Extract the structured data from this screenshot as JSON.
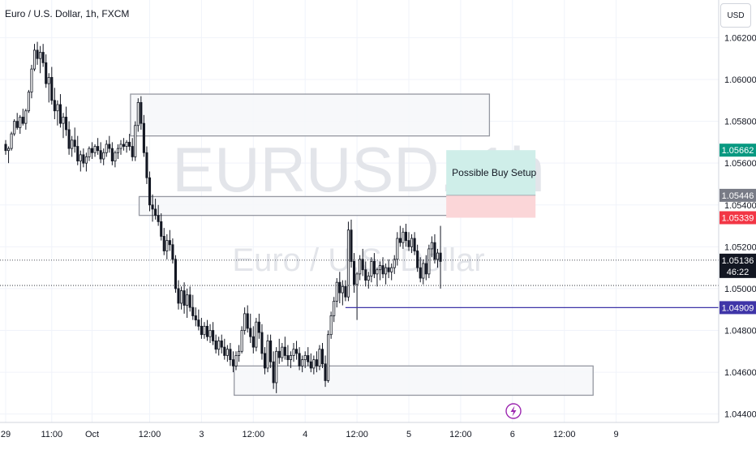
{
  "header": {
    "title": "Euro / U.S. Dollar, 1h, FXCM"
  },
  "currency_button": "USD",
  "watermark": {
    "symbol": "EURUSD, 1h",
    "name": "Euro / U.S. Dollar"
  },
  "annotation": {
    "label": "Possible Buy Setup"
  },
  "lightning_icon": "lightning-icon",
  "colors": {
    "bull": "#ffffff",
    "bear": "#131722",
    "zone_border": "#9598a1",
    "tp_fill": "#cfeee9",
    "sl_fill": "#fbd6d8",
    "level_line": "#3f35a8",
    "tp_label": "#089981",
    "sl_label": "#f23645",
    "entry_label": "#787b86",
    "last_price": "#131722"
  },
  "chart_data": {
    "type": "candlestick",
    "title": "Euro / U.S. Dollar, 1h, FXCM",
    "ylim": [
      1.0436,
      1.0638
    ],
    "y_ticks": [
      "1.06200",
      "1.06000",
      "1.05800",
      "1.05600",
      "1.05400",
      "1.05200",
      "1.05000",
      "1.04800",
      "1.04600",
      "1.04400"
    ],
    "x_ticks": [
      "29",
      "11:00",
      "Oct",
      "12:00",
      "3",
      "12:00",
      "4",
      "12:00",
      "5",
      "12:00",
      "6",
      "12:00",
      "9"
    ],
    "x_tick_bars": [
      0,
      16,
      30,
      50,
      68,
      86,
      104,
      122,
      140,
      158,
      176,
      194,
      212
    ],
    "zones": [
      {
        "name": "supply-zone-upper",
        "bar_start": 44,
        "bar_end": 168,
        "price_top": 1.0593,
        "price_bottom": 1.0573
      },
      {
        "name": "supply-zone-mid",
        "bar_start": 47,
        "bar_end": 174,
        "price_top": 1.0544,
        "price_bottom": 1.0535
      },
      {
        "name": "demand-zone",
        "bar_start": 80,
        "bar_end": 204,
        "price_top": 1.0463,
        "price_bottom": 1.0449
      }
    ],
    "position": {
      "bar_start": 153,
      "bar_end": 184,
      "target": 1.05662,
      "entry": 1.05446,
      "stop": 1.05339
    },
    "level_line": {
      "price": 1.04909,
      "bar_start": 118
    },
    "last_price": 1.05136,
    "countdown": "46:22",
    "dotted_level": 1.05015,
    "price_labels": [
      {
        "key": "target",
        "text": "1.05662",
        "price": 1.05662
      },
      {
        "key": "entry",
        "text": "1.05446",
        "price": 1.05446
      },
      {
        "key": "stop",
        "text": "1.05339",
        "price": 1.05339
      },
      {
        "key": "level",
        "text": "1.04909",
        "price": 1.04909
      }
    ],
    "candles": [
      [
        1.0569,
        1.0571,
        1.0564,
        1.0566
      ],
      [
        1.0566,
        1.0568,
        1.056,
        1.0567
      ],
      [
        1.0567,
        1.0575,
        1.0566,
        1.0574
      ],
      [
        1.0574,
        1.0581,
        1.0573,
        1.058
      ],
      [
        1.058,
        1.0584,
        1.0576,
        1.0577
      ],
      [
        1.0577,
        1.0583,
        1.0574,
        1.0582
      ],
      [
        1.0582,
        1.0586,
        1.0578,
        1.0579
      ],
      [
        1.0579,
        1.0586,
        1.0576,
        1.0585
      ],
      [
        1.0585,
        1.0595,
        1.0584,
        1.0594
      ],
      [
        1.0594,
        1.0607,
        1.0591,
        1.0605
      ],
      [
        1.0605,
        1.0617,
        1.0604,
        1.0614
      ],
      [
        1.0614,
        1.0618,
        1.0607,
        1.061
      ],
      [
        1.061,
        1.0616,
        1.0603,
        1.0613
      ],
      [
        1.0613,
        1.0617,
        1.0606,
        1.0608
      ],
      [
        1.0608,
        1.0612,
        1.0596,
        1.0598
      ],
      [
        1.0598,
        1.0603,
        1.0589,
        1.0601
      ],
      [
        1.0601,
        1.0606,
        1.0588,
        1.059
      ],
      [
        1.059,
        1.0596,
        1.0581,
        1.0585
      ],
      [
        1.0585,
        1.059,
        1.0578,
        1.0588
      ],
      [
        1.0588,
        1.0593,
        1.0577,
        1.0579
      ],
      [
        1.0579,
        1.0584,
        1.0572,
        1.0582
      ],
      [
        1.0582,
        1.0587,
        1.0573,
        1.0576
      ],
      [
        1.0576,
        1.058,
        1.0564,
        1.0567
      ],
      [
        1.0567,
        1.0573,
        1.0563,
        1.0571
      ],
      [
        1.0571,
        1.0577,
        1.0565,
        1.0568
      ],
      [
        1.0568,
        1.0573,
        1.0559,
        1.0561
      ],
      [
        1.0561,
        1.0566,
        1.0556,
        1.0564
      ],
      [
        1.0564,
        1.0567,
        1.0558,
        1.056
      ],
      [
        1.056,
        1.0565,
        1.0556,
        1.0563
      ],
      [
        1.0563,
        1.0568,
        1.0561,
        1.0567
      ],
      [
        1.0567,
        1.057,
        1.0562,
        1.0565
      ],
      [
        1.0565,
        1.0569,
        1.0563,
        1.0568
      ],
      [
        1.0568,
        1.0572,
        1.0564,
        1.0566
      ],
      [
        1.0566,
        1.057,
        1.056,
        1.0562
      ],
      [
        1.0562,
        1.0567,
        1.0559,
        1.0565
      ],
      [
        1.0565,
        1.0571,
        1.0563,
        1.0569
      ],
      [
        1.0569,
        1.0573,
        1.0565,
        1.0567
      ],
      [
        1.0567,
        1.057,
        1.0559,
        1.0561
      ],
      [
        1.0561,
        1.0566,
        1.0558,
        1.0565
      ],
      [
        1.0565,
        1.0569,
        1.0562,
        1.0567
      ],
      [
        1.0567,
        1.0571,
        1.0564,
        1.0569
      ],
      [
        1.0569,
        1.0572,
        1.0566,
        1.0568
      ],
      [
        1.0568,
        1.0571,
        1.0565,
        1.057
      ],
      [
        1.057,
        1.0574,
        1.0566,
        1.0568
      ],
      [
        1.0568,
        1.0572,
        1.0561,
        1.0563
      ],
      [
        1.0563,
        1.058,
        1.0561,
        1.0578
      ],
      [
        1.0578,
        1.0591,
        1.0575,
        1.0589
      ],
      [
        1.0589,
        1.0592,
        1.0576,
        1.0579
      ],
      [
        1.0579,
        1.0583,
        1.0563,
        1.0565
      ],
      [
        1.0565,
        1.0568,
        1.055,
        1.0553
      ],
      [
        1.0553,
        1.0556,
        1.0537,
        1.054
      ],
      [
        1.054,
        1.0545,
        1.0532,
        1.0538
      ],
      [
        1.0538,
        1.0543,
        1.0533,
        1.0535
      ],
      [
        1.0535,
        1.054,
        1.053,
        1.0532
      ],
      [
        1.0532,
        1.0536,
        1.0523,
        1.0525
      ],
      [
        1.0525,
        1.0529,
        1.0516,
        1.0518
      ],
      [
        1.0518,
        1.0526,
        1.0514,
        1.0523
      ],
      [
        1.0523,
        1.0528,
        1.0518,
        1.0521
      ],
      [
        1.0521,
        1.0524,
        1.0512,
        1.0514
      ],
      [
        1.0514,
        1.0516,
        1.0498,
        1.05
      ],
      [
        1.05,
        1.0504,
        1.049,
        1.0493
      ],
      [
        1.0493,
        1.0501,
        1.049,
        1.0499
      ],
      [
        1.0499,
        1.0503,
        1.0488,
        1.0492
      ],
      [
        1.0492,
        1.05,
        1.0486,
        1.0497
      ],
      [
        1.0497,
        1.0501,
        1.0489,
        1.0491
      ],
      [
        1.0491,
        1.0497,
        1.0485,
        1.0487
      ],
      [
        1.0487,
        1.0491,
        1.0482,
        1.0485
      ],
      [
        1.0485,
        1.049,
        1.048,
        1.0482
      ],
      [
        1.0482,
        1.0486,
        1.0476,
        1.0478
      ],
      [
        1.0478,
        1.0484,
        1.0476,
        1.0482
      ],
      [
        1.0482,
        1.0485,
        1.0475,
        1.0477
      ],
      [
        1.0477,
        1.0483,
        1.0474,
        1.048
      ],
      [
        1.048,
        1.0484,
        1.0473,
        1.0475
      ],
      [
        1.0475,
        1.0478,
        1.0469,
        1.0471
      ],
      [
        1.0471,
        1.0477,
        1.0468,
        1.0475
      ],
      [
        1.0475,
        1.0478,
        1.0469,
        1.0472
      ],
      [
        1.0472,
        1.0476,
        1.0466,
        1.0468
      ],
      [
        1.0468,
        1.0473,
        1.0465,
        1.0471
      ],
      [
        1.0471,
        1.0474,
        1.0463,
        1.0466
      ],
      [
        1.0466,
        1.047,
        1.046,
        1.0463
      ],
      [
        1.0463,
        1.047,
        1.0461,
        1.0468
      ],
      [
        1.0468,
        1.0473,
        1.0465,
        1.047
      ],
      [
        1.047,
        1.0482,
        1.0469,
        1.048
      ],
      [
        1.048,
        1.0491,
        1.0478,
        1.0488
      ],
      [
        1.0488,
        1.0492,
        1.0479,
        1.0481
      ],
      [
        1.0481,
        1.0488,
        1.0474,
        1.0477
      ],
      [
        1.0477,
        1.0482,
        1.0469,
        1.0472
      ],
      [
        1.0472,
        1.0486,
        1.047,
        1.0484
      ],
      [
        1.0484,
        1.0488,
        1.0476,
        1.0479
      ],
      [
        1.0479,
        1.0483,
        1.0466,
        1.0469
      ],
      [
        1.0469,
        1.0472,
        1.0459,
        1.0462
      ],
      [
        1.0462,
        1.0478,
        1.046,
        1.0475
      ],
      [
        1.0475,
        1.0478,
        1.0462,
        1.0465
      ],
      [
        1.0465,
        1.047,
        1.0452,
        1.0455
      ],
      [
        1.0455,
        1.0472,
        1.045,
        1.047
      ],
      [
        1.047,
        1.0476,
        1.0464,
        1.0467
      ],
      [
        1.0467,
        1.0474,
        1.0465,
        1.0472
      ],
      [
        1.0472,
        1.0477,
        1.0466,
        1.0468
      ],
      [
        1.0468,
        1.0473,
        1.0463,
        1.0466
      ],
      [
        1.0466,
        1.047,
        1.0462,
        1.0468
      ],
      [
        1.0468,
        1.0474,
        1.0465,
        1.0471
      ],
      [
        1.0471,
        1.0475,
        1.0466,
        1.0469
      ],
      [
        1.0469,
        1.0472,
        1.0461,
        1.0463
      ],
      [
        1.0463,
        1.0468,
        1.046,
        1.0466
      ],
      [
        1.0466,
        1.047,
        1.0462,
        1.0468
      ],
      [
        1.0468,
        1.0472,
        1.0463,
        1.0465
      ],
      [
        1.0465,
        1.0469,
        1.046,
        1.0462
      ],
      [
        1.0462,
        1.0468,
        1.0459,
        1.0466
      ],
      [
        1.0466,
        1.047,
        1.046,
        1.0463
      ],
      [
        1.0463,
        1.0473,
        1.0461,
        1.0471
      ],
      [
        1.0471,
        1.0474,
        1.0462,
        1.0464
      ],
      [
        1.0464,
        1.0468,
        1.0453,
        1.0456
      ],
      [
        1.0456,
        1.048,
        1.0455,
        1.0478
      ],
      [
        1.0478,
        1.0489,
        1.0476,
        1.0487
      ],
      [
        1.0487,
        1.0496,
        1.0484,
        1.0494
      ],
      [
        1.0494,
        1.0505,
        1.0491,
        1.0503
      ],
      [
        1.0503,
        1.0508,
        1.0493,
        1.0498
      ],
      [
        1.0498,
        1.0504,
        1.0492,
        1.0501
      ],
      [
        1.0501,
        1.0504,
        1.0494,
        1.0496
      ],
      [
        1.0496,
        1.0532,
        1.0494,
        1.0528
      ],
      [
        1.0528,
        1.0533,
        1.051,
        1.0513
      ],
      [
        1.0513,
        1.0517,
        1.0498,
        1.0502
      ],
      [
        1.0502,
        1.0508,
        1.0485,
        1.0507
      ],
      [
        1.0507,
        1.0516,
        1.0504,
        1.0514
      ],
      [
        1.0514,
        1.0519,
        1.0506,
        1.0509
      ],
      [
        1.0509,
        1.0513,
        1.0501,
        1.0504
      ],
      [
        1.0504,
        1.0508,
        1.05,
        1.0506
      ],
      [
        1.0506,
        1.0515,
        1.0503,
        1.0513
      ],
      [
        1.0513,
        1.0517,
        1.0505,
        1.0507
      ],
      [
        1.0507,
        1.051,
        1.0501,
        1.0509
      ],
      [
        1.0509,
        1.0513,
        1.0504,
        1.0511
      ],
      [
        1.0511,
        1.0515,
        1.0505,
        1.0507
      ],
      [
        1.0507,
        1.0512,
        1.0502,
        1.051
      ],
      [
        1.051,
        1.0514,
        1.0505,
        1.0508
      ],
      [
        1.0508,
        1.0512,
        1.0504,
        1.051
      ],
      [
        1.051,
        1.0516,
        1.0507,
        1.0514
      ],
      [
        1.0514,
        1.0527,
        1.0511,
        1.0524
      ],
      [
        1.0524,
        1.053,
        1.052,
        1.0522
      ],
      [
        1.0522,
        1.0529,
        1.0519,
        1.0527
      ],
      [
        1.0527,
        1.0531,
        1.052,
        1.0523
      ],
      [
        1.0523,
        1.0527,
        1.0518,
        1.052
      ],
      [
        1.052,
        1.0526,
        1.0517,
        1.0524
      ],
      [
        1.0524,
        1.0527,
        1.0516,
        1.0518
      ],
      [
        1.0518,
        1.0521,
        1.0508,
        1.051
      ],
      [
        1.051,
        1.0515,
        1.0503,
        1.0505
      ],
      [
        1.0505,
        1.0514,
        1.0502,
        1.0512
      ],
      [
        1.0512,
        1.0516,
        1.0504,
        1.0507
      ],
      [
        1.0507,
        1.0521,
        1.0505,
        1.0519
      ],
      [
        1.0519,
        1.0525,
        1.0515,
        1.0522
      ],
      [
        1.0522,
        1.0526,
        1.0512,
        1.0514
      ],
      [
        1.0514,
        1.0519,
        1.051,
        1.0517
      ],
      [
        1.0517,
        1.053,
        1.05,
        1.0513
      ]
    ]
  }
}
